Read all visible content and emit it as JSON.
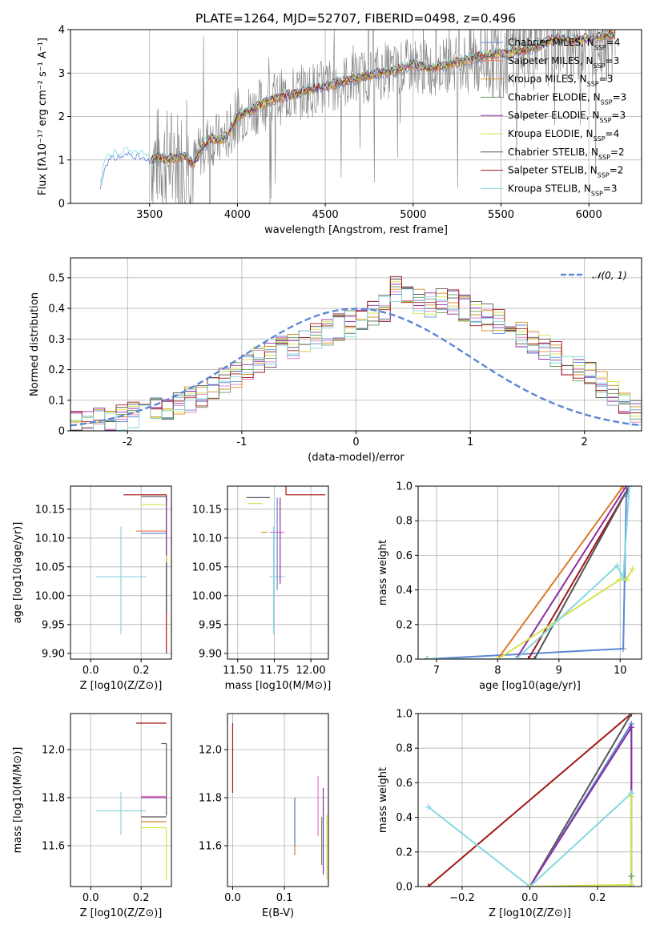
{
  "figure_title": "PLATE=1264, MJD=52707, FIBERID=0498, z=0.496",
  "colors": {
    "Chabrier MILES": "#5b87d4",
    "Salpeter MILES": "#e87f5c",
    "Kroupa MILES": "#d6922a",
    "Chabrier ELODIE": "#6b9b5e",
    "Salpeter ELODIE": "#8e2da0",
    "Kroupa ELODIE": "#d7e34a",
    "Chabrier STELIB": "#555555",
    "Salpeter STELIB": "#a01818",
    "Kroupa STELIB": "#86d8e0",
    "data": "#7f7f7f",
    "normal": "#5b87d4",
    "salpeter_miles_alt": "#e377c2",
    "kroupa_miles_alt": "#dd7a2a"
  },
  "chart_data": [
    {
      "id": "spectrum",
      "type": "line",
      "title": "PLATE=1264, MJD=52707, FIBERID=0498, z=0.496",
      "xlabel": "wavelength [Angstrom, rest frame]",
      "ylabel": "Flux [f_λ 10^-17 erg cm^-2 s^-1 A^-1]",
      "xlim": [
        3050,
        6300
      ],
      "ylim": [
        0,
        4
      ],
      "xticks": [
        3500,
        4000,
        4500,
        5000,
        5500,
        6000
      ],
      "yticks": [
        0,
        1,
        2,
        3,
        4
      ],
      "legend": "upper right",
      "series": [
        {
          "name": "Chabrier MILES, N_SSP=4",
          "color": "#5b87d4"
        },
        {
          "name": "Salpeter MILES, N_SSP=3",
          "color": "#e87f5c"
        },
        {
          "name": "Kroupa MILES, N_SSP=3",
          "color": "#d6922a"
        },
        {
          "name": "Chabrier ELODIE, N_SSP=3",
          "color": "#6b9b5e"
        },
        {
          "name": "Salpeter ELODIE, N_SSP=3",
          "color": "#8e2da0"
        },
        {
          "name": "Kroupa ELODIE, N_SSP=4",
          "color": "#d7e34a"
        },
        {
          "name": "Chabrier STELIB, N_SSP=2",
          "color": "#555555"
        },
        {
          "name": "Salpeter STELIB, N_SSP=2",
          "color": "#a01818"
        },
        {
          "name": "Kroupa STELIB, N_SSP=3",
          "color": "#86d8e0"
        }
      ],
      "model_envelope": {
        "x": [
          3220,
          3250,
          3300,
          3350,
          3400,
          3450,
          3500,
          3550,
          3600,
          3650,
          3700,
          3750,
          3800,
          3850,
          3900,
          3950,
          4000,
          4100,
          4200,
          4300,
          4400,
          4500,
          4600,
          4700,
          4800,
          4900,
          5000,
          5100,
          5200,
          5300,
          5400,
          5500,
          5600,
          5700,
          5800,
          5900,
          6000,
          6100,
          6150
        ],
        "y": [
          0.4,
          1.0,
          1.1,
          1.15,
          1.2,
          1.1,
          1.0,
          1.05,
          1.0,
          1.05,
          1.1,
          0.9,
          1.3,
          1.5,
          1.45,
          1.6,
          2.0,
          2.2,
          2.4,
          2.5,
          2.6,
          2.7,
          2.8,
          2.9,
          3.0,
          3.05,
          3.2,
          3.1,
          3.2,
          3.3,
          3.4,
          3.45,
          3.5,
          3.6,
          3.8,
          3.75,
          3.8,
          3.85,
          3.9
        ]
      }
    },
    {
      "id": "residuals",
      "type": "histogram",
      "xlabel": "(data-model)/error",
      "ylabel": "Normed distribution",
      "xlim": [
        -2.5,
        2.5
      ],
      "ylim": [
        0,
        0.565
      ],
      "xticks": [
        -2,
        -1,
        0,
        1,
        2
      ],
      "yticks": [
        0.0,
        0.1,
        0.2,
        0.3,
        0.4,
        0.5
      ],
      "legend": "upper right",
      "legend_label": "N(0,1)",
      "bin_width": 0.1,
      "bins_start": -2.5,
      "series_heights": [
        0.02,
        0.02,
        0.03,
        0.04,
        0.04,
        0.05,
        0.06,
        0.07,
        0.08,
        0.09,
        0.1,
        0.12,
        0.14,
        0.16,
        0.18,
        0.21,
        0.23,
        0.25,
        0.27,
        0.28,
        0.3,
        0.31,
        0.32,
        0.34,
        0.35,
        0.36,
        0.38,
        0.4,
        0.46,
        0.44,
        0.42,
        0.41,
        0.43,
        0.42,
        0.4,
        0.38,
        0.37,
        0.36,
        0.33,
        0.31,
        0.29,
        0.27,
        0.25,
        0.22,
        0.2,
        0.18,
        0.15,
        0.12,
        0.1,
        0.06
      ]
    },
    {
      "id": "age_vs_Z",
      "type": "scatter",
      "xlabel": "Z [log10(Z/Z⊙)]",
      "ylabel": "age [log10(age/yr)]",
      "xlim": [
        -0.08,
        0.32
      ],
      "ylim": [
        9.89,
        10.19
      ],
      "xticks": [
        0.0,
        0.2
      ],
      "xticklabels": [
        "0.0",
        "0.2"
      ],
      "yticks": [
        9.9,
        9.95,
        10.0,
        10.05,
        10.1,
        10.15
      ],
      "yticklabels": [
        "9.90",
        "9.95",
        "10.00",
        "10.05",
        "10.10",
        "10.15"
      ],
      "points": [
        {
          "x": 0.12,
          "y": 10.033,
          "xerr": [
            0.1,
            0.1
          ],
          "yerr": [
            0.1,
            0.087
          ],
          "color": "#86d8e0"
        },
        {
          "x": 0.3,
          "y": 10.175,
          "xerr": [
            0.17,
            0.0
          ],
          "yerr": [
            0.275,
            0.0
          ],
          "color": "#a01818"
        },
        {
          "x": 0.3,
          "y": 10.172,
          "xerr": [
            0.1,
            0.0
          ],
          "yerr": [
            0.2,
            0.0
          ],
          "color": "#555555"
        },
        {
          "x": 0.3,
          "y": 10.158,
          "xerr": [
            0.1,
            0.0
          ],
          "yerr": [
            0.1,
            0.0
          ],
          "color": "#d7e34a"
        },
        {
          "x": 0.3,
          "y": 10.112,
          "xerr": [
            0.12,
            0.0
          ],
          "yerr": [
            0.0,
            0.0
          ],
          "color": "#e87f5c"
        },
        {
          "x": 0.3,
          "y": 10.108,
          "xerr": [
            0.1,
            0.0
          ],
          "yerr": [
            0.0,
            0.0
          ],
          "color": "#5b87d4"
        },
        {
          "x": 0.3,
          "y": 10.17,
          "xerr": [
            0.0,
            0.0
          ],
          "yerr": [
            0.1,
            0.0
          ],
          "color": "#8e2da0"
        }
      ]
    },
    {
      "id": "age_vs_mass",
      "type": "scatter",
      "xlabel": "mass [log10(M/M⊙)]",
      "ylabel": "",
      "xlim": [
        11.43,
        12.12
      ],
      "ylim": [
        9.89,
        10.19
      ],
      "xticks": [
        11.5,
        11.75,
        12.0
      ],
      "xticklabels": [
        "11.50",
        "11.75",
        "12.00"
      ],
      "yticks": [
        9.9,
        9.95,
        10.0,
        10.05,
        10.1,
        10.15
      ],
      "yticklabels": [
        "9.90",
        "9.95",
        "10.00",
        "10.05",
        "10.10",
        "10.15"
      ],
      "points": [
        {
          "x": 11.745,
          "y": 10.033,
          "xerr": [
            0.03,
            0.08
          ],
          "yerr": [
            0.1,
            0.087
          ],
          "color": "#86d8e0"
        },
        {
          "x": 11.82,
          "y": 10.11,
          "xerr": [
            0.1,
            0.0
          ],
          "yerr": [
            0.0,
            0.0
          ],
          "color": "#e377c2"
        },
        {
          "x": 11.7,
          "y": 10.11,
          "xerr": [
            0.04,
            0.0
          ],
          "yerr": [
            0.0,
            0.0
          ],
          "color": "#d6922a"
        },
        {
          "x": 11.72,
          "y": 10.17,
          "xerr": [
            0.16,
            0.0
          ],
          "yerr": [
            0.0,
            0.0
          ],
          "color": "#555555"
        },
        {
          "x": 11.83,
          "y": 10.175,
          "xerr": [
            0.0,
            0.27
          ],
          "yerr": [
            0.0,
            0.275
          ],
          "color": "#a01818"
        },
        {
          "x": 11.67,
          "y": 10.16,
          "xerr": [
            0.1,
            0.0
          ],
          "yerr": [
            0.0,
            0.0
          ],
          "color": "#d7e34a"
        },
        {
          "x": 11.77,
          "y": 10.17,
          "xerr": [
            0.0,
            0.0
          ],
          "yerr": [
            0.16,
            0.0
          ],
          "color": "#5b87d4"
        },
        {
          "x": 11.79,
          "y": 10.17,
          "xerr": [
            0.0,
            0.0
          ],
          "yerr": [
            0.15,
            0.0
          ],
          "color": "#8e2da0"
        }
      ]
    },
    {
      "id": "massweight_vs_age",
      "type": "line",
      "xlabel": "age [log10(age/yr)]",
      "ylabel": "mass weight",
      "xlim": [
        6.7,
        10.35
      ],
      "ylim": [
        0,
        1
      ],
      "xticks": [
        7,
        8,
        9,
        10
      ],
      "yticks": [
        0.0,
        0.2,
        0.4,
        0.6,
        0.8,
        1.0
      ],
      "yticklabels": [
        "0.0",
        "0.2",
        "0.4",
        "0.6",
        "0.8",
        "1.0"
      ],
      "series": [
        {
          "x": [
            6.85,
            10.05,
            10.1,
            10.15
          ],
          "y": [
            0.0,
            0.06,
            0.94,
            1.0
          ],
          "color": "#5b87d4"
        },
        {
          "x": [
            6.85,
            8.0,
            10.05
          ],
          "y": [
            0.0,
            0.0,
            1.0
          ],
          "color": "#dd7a2a"
        },
        {
          "x": [
            6.85,
            8.3,
            10.1
          ],
          "y": [
            0.0,
            0.0,
            1.0
          ],
          "color": "#8e2da0"
        },
        {
          "x": [
            6.85,
            8.5,
            10.15
          ],
          "y": [
            0.0,
            0.0,
            1.0
          ],
          "color": "#a01818"
        },
        {
          "x": [
            6.85,
            8.6,
            10.15
          ],
          "y": [
            0.0,
            0.0,
            1.0
          ],
          "color": "#555555"
        },
        {
          "x": [
            6.85,
            8.0,
            10.0,
            10.1,
            10.2
          ],
          "y": [
            0.0,
            0.0,
            0.46,
            0.46,
            0.52
          ],
          "color": "#d7e34a"
        },
        {
          "x": [
            6.85,
            8.3,
            9.95,
            10.05,
            10.15
          ],
          "y": [
            0.0,
            0.0,
            0.54,
            0.47,
            1.0
          ],
          "color": "#86d8e0"
        }
      ]
    },
    {
      "id": "mass_vs_Z",
      "type": "scatter",
      "xlabel": "Z [log10(Z/Z⊙)]",
      "ylabel": "mass [log10(M/M⊙)]",
      "xlim": [
        -0.08,
        0.32
      ],
      "ylim": [
        11.43,
        12.15
      ],
      "xticks": [
        0.0,
        0.2
      ],
      "xticklabels": [
        "0.0",
        "0.2"
      ],
      "yticks": [
        11.6,
        11.8,
        12.0
      ],
      "yticklabels": [
        "11.6",
        "11.8",
        "12.0"
      ],
      "points": [
        {
          "x": 0.12,
          "y": 11.745,
          "xerr": [
            0.1,
            0.1
          ],
          "yerr": [
            0.1,
            0.08
          ],
          "color": "#86d8e0"
        },
        {
          "x": 0.3,
          "y": 12.11,
          "xerr": [
            0.12,
            0.0
          ],
          "yerr": [
            0.0,
            0.0
          ],
          "color": "#a01818"
        },
        {
          "x": 0.3,
          "y": 12.025,
          "xerr": [
            0.02,
            0.0
          ],
          "yerr": [
            0.3,
            0.0
          ],
          "color": "#555555"
        },
        {
          "x": 0.3,
          "y": 11.805,
          "xerr": [
            0.1,
            0.0
          ],
          "yerr": [
            0.0,
            0.0
          ],
          "color": "#e377c2"
        },
        {
          "x": 0.3,
          "y": 11.8,
          "xerr": [
            0.1,
            0.0
          ],
          "yerr": [
            0.0,
            0.0
          ],
          "color": "#8e2da0"
        },
        {
          "x": 0.3,
          "y": 11.72,
          "xerr": [
            0.1,
            0.0
          ],
          "yerr": [
            0.0,
            0.0
          ],
          "color": "#555555"
        },
        {
          "x": 0.3,
          "y": 11.7,
          "xerr": [
            0.1,
            0.0
          ],
          "yerr": [
            0.0,
            0.0
          ],
          "color": "#dd7a2a"
        },
        {
          "x": 0.3,
          "y": 11.675,
          "xerr": [
            0.1,
            0.0
          ],
          "yerr": [
            0.22,
            0.0
          ],
          "color": "#d7e34a"
        }
      ]
    },
    {
      "id": "mass_vs_EBV",
      "type": "scatter",
      "xlabel": "E(B-V)",
      "ylabel": "",
      "xlim": [
        -0.01,
        0.185
      ],
      "ylim": [
        11.43,
        12.15
      ],
      "xticks": [
        0.0,
        0.1
      ],
      "xticklabels": [
        "0.0",
        "0.1"
      ],
      "yticks": [
        11.6,
        11.8,
        12.0
      ],
      "yticklabels": [
        "11.6",
        "11.8",
        "12.0"
      ],
      "points": [
        {
          "x": 0.0,
          "y": 11.97,
          "yerr": [
            0.15,
            0.14
          ],
          "color": "#a01818"
        },
        {
          "x": 0.12,
          "y": 11.68,
          "yerr": [
            0.12,
            0.12
          ],
          "color": "#dd7a2a"
        },
        {
          "x": 0.12,
          "y": 11.7,
          "yerr": [
            0.1,
            0.1
          ],
          "color": "#5b87d4"
        },
        {
          "x": 0.165,
          "y": 11.76,
          "yerr": [
            0.12,
            0.13
          ],
          "color": "#e377c2"
        },
        {
          "x": 0.175,
          "y": 11.65,
          "yerr": [
            0.17,
            0.19
          ],
          "color": "#8e2da0"
        },
        {
          "x": 0.172,
          "y": 11.62,
          "yerr": [
            0.1,
            0.1
          ],
          "color": "#6b9b5e"
        },
        {
          "x": 0.182,
          "y": 11.59,
          "yerr": [
            0.13,
            0.14
          ],
          "color": "#d7e34a"
        }
      ]
    },
    {
      "id": "massweight_vs_Z",
      "type": "line",
      "xlabel": "Z [log10(Z/Z⊙)]",
      "ylabel": "mass weight",
      "xlim": [
        -0.33,
        0.33
      ],
      "ylim": [
        0,
        1
      ],
      "xticks": [
        -0.2,
        0.0,
        0.2
      ],
      "xticklabels": [
        "−0.2",
        "0.0",
        "0.2"
      ],
      "yticks": [
        0.0,
        0.2,
        0.4,
        0.6,
        0.8,
        1.0
      ],
      "yticklabels": [
        "0.0",
        "0.2",
        "0.4",
        "0.6",
        "0.8",
        "1.0"
      ],
      "series": [
        {
          "x": [
            -0.3,
            0.3
          ],
          "y": [
            0.0,
            1.0
          ],
          "color": "#a01818"
        },
        {
          "x": [
            0.0,
            0.3
          ],
          "y": [
            0.0,
            1.0
          ],
          "color": "#555555"
        },
        {
          "x": [
            0.0,
            0.3,
            0.3
          ],
          "y": [
            0.0,
            0.94,
            0.0
          ],
          "color": "#5b87d4"
        },
        {
          "x": [
            0.0,
            0.3,
            0.3
          ],
          "y": [
            0.0,
            0.92,
            0.0
          ],
          "color": "#8e2da0"
        },
        {
          "x": [
            -0.3,
            0.0,
            0.3,
            0.3
          ],
          "y": [
            0.46,
            0.0,
            0.54,
            0.0
          ],
          "color": "#86d8e0"
        },
        {
          "x": [
            0.0,
            0.3,
            0.3
          ],
          "y": [
            0.0,
            0.01,
            0.52
          ],
          "color": "#d7e34a"
        },
        {
          "x": [
            0.3
          ],
          "y": [
            0.06
          ],
          "color": "#6b9b5e"
        }
      ]
    }
  ]
}
